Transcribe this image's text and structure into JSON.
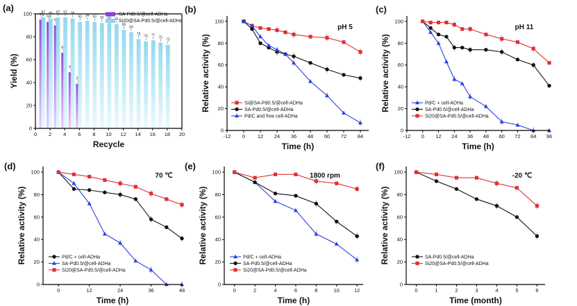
{
  "chart_data": [
    {
      "id": "a",
      "panel_label": "(a)",
      "type": "bar",
      "xlabel": "Recycle",
      "ylabel": "Yield (%)",
      "xlim": [
        0,
        20
      ],
      "ylim": [
        0,
        100
      ],
      "xticks": [
        0,
        2,
        4,
        6,
        8,
        10,
        12,
        14,
        16,
        18,
        20
      ],
      "yticks": [
        0,
        20,
        40,
        60,
        80,
        100
      ],
      "legend_position": "top-right",
      "series": [
        {
          "name": "SA-Pd0.5/@cell-ADHa",
          "color": "#8b3fd9",
          "x": [
            1,
            2,
            3,
            4,
            5,
            6
          ],
          "values": [
            95,
            93,
            90,
            66,
            49,
            39
          ]
        },
        {
          "name": "Si20@SA-Pd0.5/@cell-ADHa",
          "color": "#8fd6ee",
          "x": [
            1,
            2,
            3,
            4,
            5,
            6,
            7,
            8,
            9,
            10,
            11,
            12,
            13,
            14,
            15,
            16,
            17,
            18
          ],
          "values": [
            97,
            96,
            97,
            97,
            96,
            93,
            94,
            93,
            92,
            92,
            91,
            86,
            84,
            78,
            76,
            77,
            75,
            73
          ]
        }
      ]
    },
    {
      "id": "b",
      "panel_label": "(b)",
      "type": "line",
      "annotation": "pH 5",
      "xlabel": "Time (h)",
      "ylabel": "Relative activity (%)",
      "xlim": [
        -12,
        90
      ],
      "ylim": [
        0,
        105
      ],
      "xticks": [
        -12,
        0,
        12,
        24,
        36,
        48,
        60,
        72,
        84
      ],
      "yticks": [
        0,
        20,
        40,
        60,
        80,
        100
      ],
      "legend_position": "bottom-left",
      "series": [
        {
          "name": "Si@SA-Pd0.5/@cell-ADHa",
          "color": "#e03030",
          "marker": "square",
          "x": [
            0,
            6,
            12,
            18,
            24,
            30,
            36,
            48,
            60,
            72,
            84
          ],
          "y": [
            100,
            96,
            94,
            93,
            92,
            90,
            88,
            86,
            85,
            81,
            72
          ]
        },
        {
          "name": "SA-Pd0.5/@cell-ADHa",
          "color": "#111111",
          "marker": "circle",
          "x": [
            0,
            6,
            12,
            18,
            24,
            30,
            36,
            48,
            60,
            72,
            84
          ],
          "y": [
            100,
            93,
            80,
            76,
            72,
            70,
            68,
            62,
            56,
            51,
            48
          ]
        },
        {
          "name": "Pd/C and free cell-ADHa",
          "color": "#2b3fe0",
          "marker": "triangle",
          "x": [
            0,
            6,
            12,
            18,
            24,
            30,
            36,
            48,
            60,
            72,
            84
          ],
          "y": [
            100,
            96,
            86,
            78,
            74,
            70,
            62,
            45,
            32,
            16,
            7
          ]
        }
      ]
    },
    {
      "id": "c",
      "panel_label": "(c)",
      "type": "line",
      "annotation": "pH 11",
      "xlabel": "Time (h)",
      "ylabel": "Relative activity (%)",
      "xlim": [
        -12,
        96
      ],
      "ylim": [
        0,
        105
      ],
      "xticks": [
        -12,
        0,
        12,
        24,
        36,
        48,
        60,
        72,
        84,
        96
      ],
      "yticks": [
        0,
        20,
        40,
        60,
        80,
        100
      ],
      "legend_position": "bottom-left",
      "series": [
        {
          "name": "Pd/C + cell-ADHa",
          "color": "#2b3fe0",
          "marker": "triangle",
          "x": [
            0,
            6,
            12,
            18,
            24,
            30,
            36,
            48,
            60,
            72,
            84,
            96
          ],
          "y": [
            100,
            90,
            80,
            63,
            47,
            43,
            31,
            22,
            8,
            5,
            0,
            0
          ]
        },
        {
          "name": "SA-Pd0.5/@cell-ADHa",
          "color": "#111111",
          "marker": "circle",
          "x": [
            0,
            6,
            12,
            18,
            24,
            30,
            36,
            48,
            60,
            72,
            84,
            96
          ],
          "y": [
            100,
            94,
            88,
            86,
            76,
            76,
            74,
            74,
            72,
            65,
            60,
            41
          ]
        },
        {
          "name": "Si20@SA-Pd0.5/@cell-ADHa",
          "color": "#e03030",
          "marker": "square",
          "x": [
            0,
            6,
            12,
            18,
            24,
            30,
            36,
            48,
            60,
            72,
            84,
            96
          ],
          "y": [
            100,
            99,
            99,
            99,
            97,
            93,
            93,
            88,
            84,
            81,
            75,
            62
          ]
        }
      ]
    },
    {
      "id": "d",
      "panel_label": "(d)",
      "type": "line",
      "annotation": "70 ℃",
      "xlabel": "Time (h)",
      "ylabel": "Relative activity (%)",
      "xlim": [
        -6,
        48
      ],
      "ylim": [
        0,
        105
      ],
      "xticks": [
        0,
        12,
        24,
        36,
        48
      ],
      "yticks": [
        0,
        20,
        40,
        60,
        80,
        100
      ],
      "legend_position": "bottom-left",
      "series": [
        {
          "name": "Pd/C + cell-ADHa",
          "color": "#111111",
          "marker": "circle",
          "x": [
            0,
            6,
            12,
            18,
            24,
            30,
            36,
            42,
            48
          ],
          "y": [
            100,
            85,
            84,
            82,
            80,
            76,
            58,
            51,
            41
          ]
        },
        {
          "name": "SA-Pd0.5/@cell-ADHa",
          "color": "#2b3fe0",
          "marker": "triangle",
          "x": [
            0,
            6,
            12,
            18,
            24,
            30,
            36,
            42,
            48
          ],
          "y": [
            100,
            90,
            72,
            45,
            37,
            21,
            13,
            0,
            0
          ]
        },
        {
          "name": "Si20@SA-Pd0.5/@cell-ADHa",
          "color": "#e03030",
          "marker": "square",
          "x": [
            0,
            6,
            12,
            18,
            24,
            30,
            36,
            42,
            48
          ],
          "y": [
            100,
            98,
            96,
            93,
            90,
            87,
            81,
            76,
            71
          ]
        }
      ]
    },
    {
      "id": "e",
      "panel_label": "(e)",
      "type": "line",
      "annotation": "1800 rpm",
      "xlabel": "Time (h)",
      "ylabel": "Relative activity (%)",
      "xlim": [
        -1,
        12.6
      ],
      "ylim": [
        0,
        105
      ],
      "xticks": [
        0,
        2,
        4,
        6,
        8,
        10,
        12
      ],
      "yticks": [
        0,
        20,
        40,
        60,
        80,
        100
      ],
      "legend_position": "bottom-left",
      "series": [
        {
          "name": "Pd/C + cell-ADHa",
          "color": "#2b3fe0",
          "marker": "triangle",
          "x": [
            0,
            2,
            4,
            6,
            8,
            10,
            12
          ],
          "y": [
            100,
            91,
            74,
            66,
            45,
            36,
            22
          ]
        },
        {
          "name": "SA-Pd0.5/@cell-ADHa",
          "color": "#111111",
          "marker": "circle",
          "x": [
            0,
            2,
            4,
            6,
            8,
            10,
            12
          ],
          "y": [
            100,
            91,
            81,
            79,
            72,
            56,
            43
          ]
        },
        {
          "name": "Si20@SA-Pd0.5/@cell-ADHa",
          "color": "#e03030",
          "marker": "square",
          "x": [
            0,
            2,
            4,
            6,
            8,
            10,
            12
          ],
          "y": [
            100,
            95,
            98,
            98,
            92,
            90,
            85
          ]
        }
      ]
    },
    {
      "id": "f",
      "panel_label": "(f)",
      "type": "line",
      "annotation": "-20 ℃",
      "xlabel": "Time (month)",
      "ylabel": "Relative activity (%)",
      "xlim": [
        -0.5,
        6.4
      ],
      "ylim": [
        0,
        105
      ],
      "xticks": [
        0,
        1,
        2,
        3,
        4,
        5,
        6
      ],
      "yticks": [
        0,
        20,
        40,
        60,
        80,
        100
      ],
      "legend_position": "bottom-left",
      "series": [
        {
          "name": "SA-Pd0.5/@cell-ADHa",
          "color": "#111111",
          "marker": "circle",
          "x": [
            0,
            1,
            2,
            3,
            4,
            5,
            6
          ],
          "y": [
            100,
            92,
            85,
            76,
            70,
            60,
            43
          ]
        },
        {
          "name": "Si20@SA-Pd0.5/@cell-ADHa",
          "color": "#e03030",
          "marker": "square",
          "x": [
            0,
            1,
            2,
            3,
            4,
            5,
            6
          ],
          "y": [
            100,
            98,
            95,
            95,
            90,
            86,
            70
          ]
        }
      ]
    }
  ]
}
